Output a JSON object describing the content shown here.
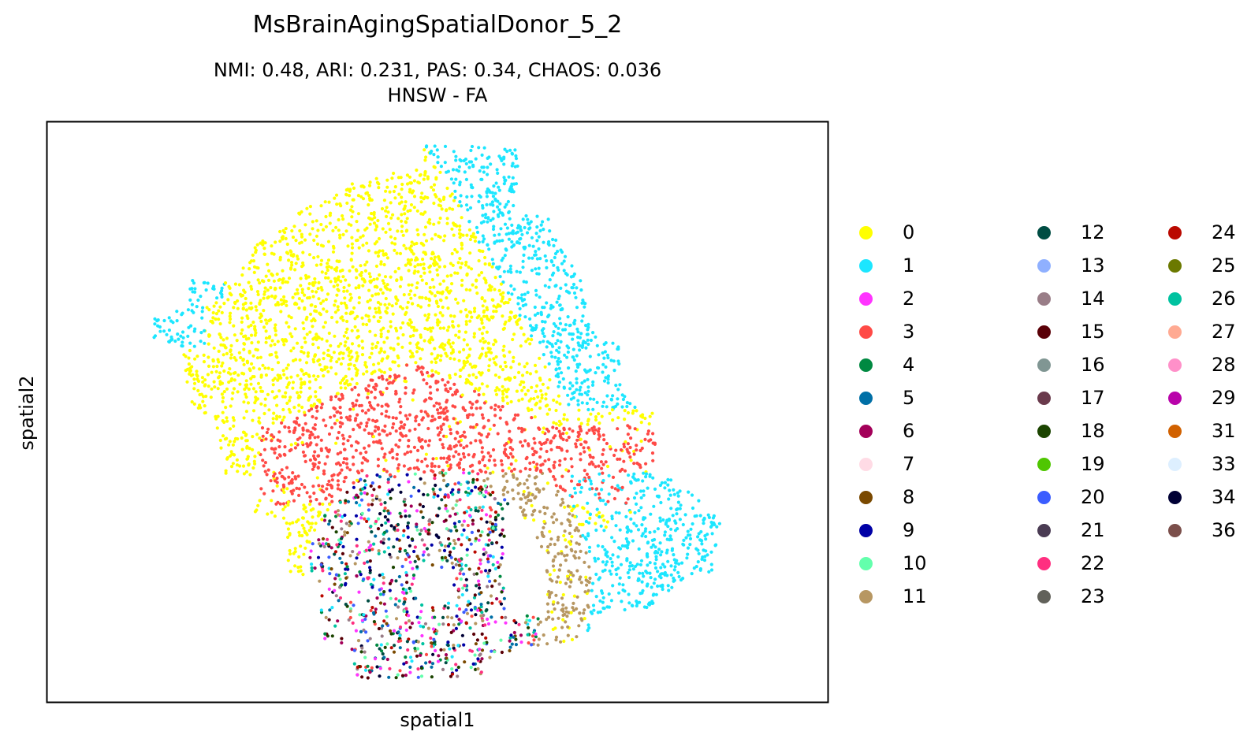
{
  "chart_data": {
    "type": "scatter",
    "title": "MsBrainAgingSpatialDonor_5_2",
    "subtitle_lines": [
      "NMI: 0.48,  ARI: 0.231,  PAS: 0.34,  CHAOS: 0.036",
      "HNSW - FA"
    ],
    "xlabel": "spatial1",
    "ylabel": "spatial2",
    "xticks": [],
    "yticks": [],
    "grid": false,
    "legend_placement": "right outside, 3 columns",
    "clusters": [
      {
        "label": "0",
        "color": "#ffff00"
      },
      {
        "label": "1",
        "color": "#1ce6ff"
      },
      {
        "label": "2",
        "color": "#ff34ff"
      },
      {
        "label": "3",
        "color": "#ff4a46"
      },
      {
        "label": "4",
        "color": "#008941"
      },
      {
        "label": "5",
        "color": "#006fa6"
      },
      {
        "label": "6",
        "color": "#a30059"
      },
      {
        "label": "7",
        "color": "#ffdbe5"
      },
      {
        "label": "8",
        "color": "#7a4900"
      },
      {
        "label": "9",
        "color": "#0000a6"
      },
      {
        "label": "10",
        "color": "#63ffac"
      },
      {
        "label": "11",
        "color": "#b79762"
      },
      {
        "label": "12",
        "color": "#004d43"
      },
      {
        "label": "13",
        "color": "#8fb0ff"
      },
      {
        "label": "14",
        "color": "#997d87"
      },
      {
        "label": "15",
        "color": "#5a0007"
      },
      {
        "label": "16",
        "color": "#809693"
      },
      {
        "label": "17",
        "color": "#6a3a4c"
      },
      {
        "label": "18",
        "color": "#1b4400"
      },
      {
        "label": "19",
        "color": "#4fc601"
      },
      {
        "label": "20",
        "color": "#3b5dff"
      },
      {
        "label": "21",
        "color": "#4a3b53"
      },
      {
        "label": "22",
        "color": "#ff2f80"
      },
      {
        "label": "23",
        "color": "#61615a"
      },
      {
        "label": "24",
        "color": "#ba0900"
      },
      {
        "label": "25",
        "color": "#6b7900"
      },
      {
        "label": "26",
        "color": "#00c2a0"
      },
      {
        "label": "27",
        "color": "#ffaa92"
      },
      {
        "label": "28",
        "color": "#ff90c9"
      },
      {
        "label": "29",
        "color": "#b903aa"
      },
      {
        "label": "31",
        "color": "#d16100"
      },
      {
        "label": "33",
        "color": "#ddefff"
      },
      {
        "label": "34",
        "color": "#000035"
      },
      {
        "label": "36",
        "color": "#7b4f4b"
      }
    ]
  }
}
